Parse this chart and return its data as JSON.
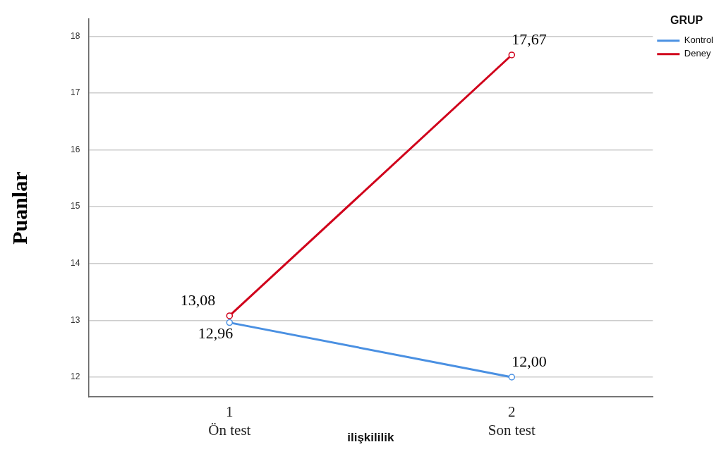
{
  "chart_data": {
    "type": "line",
    "categories": [
      "1\nÖn test",
      "2\nSon test"
    ],
    "series": [
      {
        "name": "Kontrol",
        "color": "#4a90e2",
        "values": [
          12.96,
          12.0
        ],
        "value_labels": [
          "12,96",
          "12,00"
        ]
      },
      {
        "name": "Deney",
        "color": "#d0021b",
        "values": [
          13.08,
          17.67
        ],
        "value_labels": [
          "13,08",
          "17,67"
        ]
      }
    ],
    "xlabel": "ilişkililik",
    "ylabel": "Puanlar",
    "legend_title": "GRUP",
    "ylim": [
      11.65,
      18.3
    ],
    "yticks": [
      12,
      13,
      14,
      15,
      16,
      17,
      18
    ],
    "grid": "y",
    "legend": "top right",
    "marker": "circle",
    "line_style": "solid"
  }
}
